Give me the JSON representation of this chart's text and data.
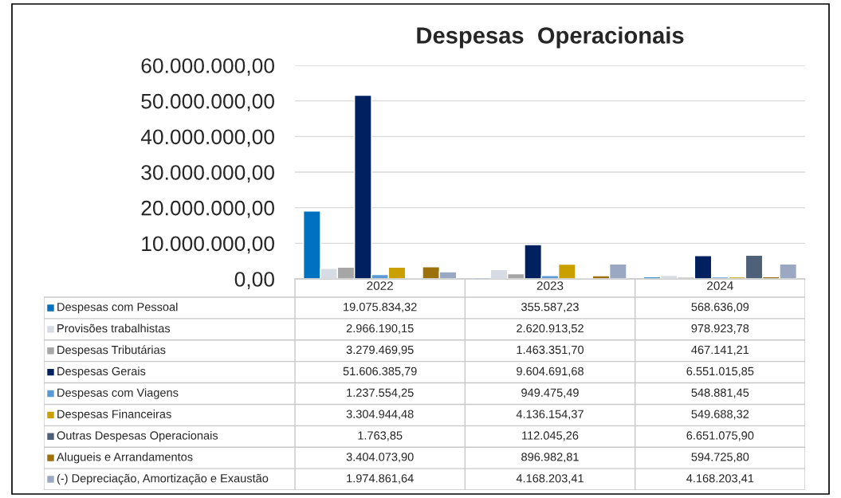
{
  "chart_data": {
    "type": "bar",
    "title": "Despesas  Operacionais",
    "categories": [
      "2022",
      "2023",
      "2024"
    ],
    "series": [
      {
        "name": "Despesas com Pessoal",
        "color": "#0070c0",
        "values": [
          19075834.32,
          355587.23,
          568636.09
        ],
        "value_labels": [
          "19.075.834,32",
          "355.587,23",
          "568.636,09"
        ]
      },
      {
        "name": "Provisões trabalhistas",
        "color": "#d6dbe4",
        "values": [
          2966190.15,
          2620913.52,
          978923.78
        ],
        "value_labels": [
          "2.966.190,15",
          "2.620.913,52",
          "978.923,78"
        ]
      },
      {
        "name": "Despesas Tributárias",
        "color": "#a6a6a6",
        "values": [
          3279469.95,
          1463351.7,
          467141.21
        ],
        "value_labels": [
          "3.279.469,95",
          "1.463.351,70",
          "467.141,21"
        ]
      },
      {
        "name": "Despesas Gerais",
        "color": "#002060",
        "values": [
          51606385.79,
          9604691.68,
          6551015.85
        ],
        "value_labels": [
          "51.606.385,79",
          "9.604.691,68",
          "6.551.015,85"
        ]
      },
      {
        "name": "Despesas com Viagens",
        "color": "#5b9bd5",
        "values": [
          1237554.25,
          949475.49,
          548881.45
        ],
        "value_labels": [
          "1.237.554,25",
          "949.475,49",
          "548.881,45"
        ]
      },
      {
        "name": "Despesas Financeiras",
        "color": "#c9a000",
        "values": [
          3304944.48,
          4136154.37,
          549688.32
        ],
        "value_labels": [
          "3.304.944,48",
          "4.136.154,37",
          "549.688,32"
        ]
      },
      {
        "name": "Outras Despesas Operacionais",
        "color": "#4f6079",
        "values": [
          1763.85,
          112045.26,
          6651075.9
        ],
        "value_labels": [
          "1.763,85",
          "112.045,26",
          "6.651.075,90"
        ]
      },
      {
        "name": "Alugueis e Arrandamentos",
        "color": "#9c700a",
        "values": [
          3404073.9,
          896982.81,
          594725.8
        ],
        "value_labels": [
          "3.404.073,90",
          "896.982,81",
          "594.725,80"
        ]
      },
      {
        "name": "(-) Depreciação, Amortização e Exaustão",
        "color": "#9aa8c4",
        "values": [
          1974861.64,
          4168203.41,
          4168203.41
        ],
        "value_labels": [
          "1.974.861,64",
          "4.168.203,41",
          "4.168.203,41"
        ]
      }
    ],
    "ylim": [
      0,
      60000000
    ],
    "yticks": [
      {
        "value": 0,
        "label": "0,00"
      },
      {
        "value": 10000000,
        "label": "10.000.000,00"
      },
      {
        "value": 20000000,
        "label": "20.000.000,00"
      },
      {
        "value": 30000000,
        "label": "30.000.000,00"
      },
      {
        "value": 40000000,
        "label": "40.000.000,00"
      },
      {
        "value": 50000000,
        "label": "50.000.000,00"
      },
      {
        "value": 60000000,
        "label": "60.000.000,00"
      }
    ],
    "grid": "y",
    "legend": "bottom"
  }
}
